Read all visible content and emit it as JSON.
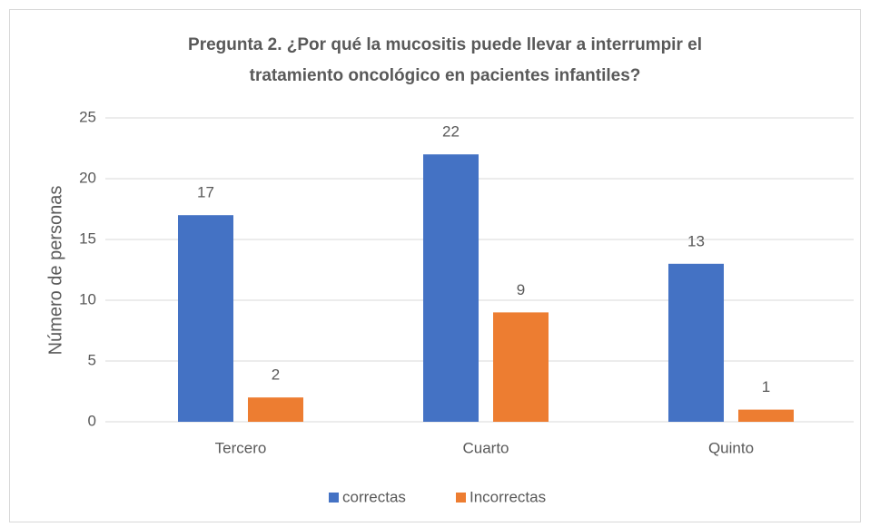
{
  "chart_data": {
    "type": "bar",
    "title": [
      "Pregunta 2.  ¿Por qué la mucositis puede llevar a interrumpir el",
      "tratamiento oncológico en pacientes infantiles?"
    ],
    "y_label": "Número de personas",
    "categories": [
      "Tercero",
      "Cuarto",
      "Quinto"
    ],
    "series": [
      {
        "name": "correctas",
        "color": "#4472c4",
        "values": [
          17,
          22,
          13
        ]
      },
      {
        "name": "Incorrectas",
        "color": "#ed7d31",
        "values": [
          2,
          9,
          1
        ]
      }
    ],
    "ylim": [
      0,
      25
    ],
    "yticks": [
      0,
      5,
      10,
      15,
      20,
      25
    ],
    "grid": true,
    "legend": "bottom"
  }
}
